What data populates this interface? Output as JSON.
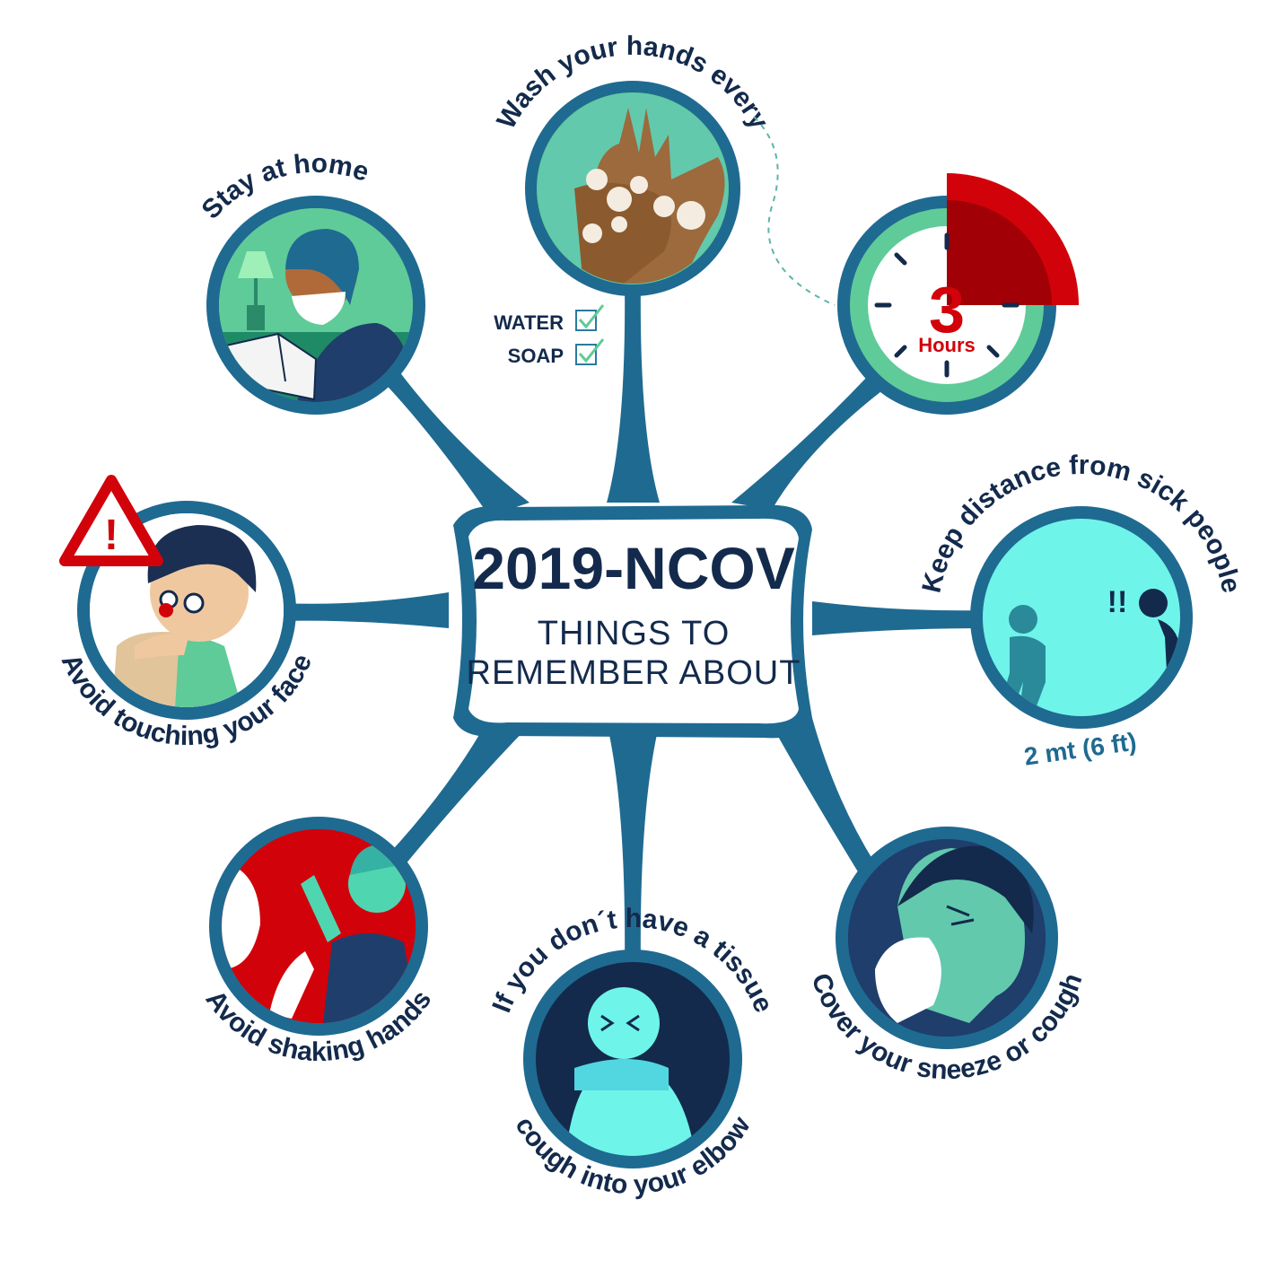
{
  "colors": {
    "navy": "#132a4c",
    "ring": "#1f6a91",
    "mint": "#5fcb98",
    "cyan": "#6ff4ea",
    "red": "#d2020a",
    "teal_text": "#1f6a91"
  },
  "center": {
    "title": "2019-NCOV",
    "subtitle_line1": "THINGS TO",
    "subtitle_line2": "REMEMBER ABOUT"
  },
  "tips": {
    "wash": {
      "label": "Wash your hands every",
      "icon": "hand-washing-icon"
    },
    "timer": {
      "number": "3",
      "unit": "Hours",
      "icon": "clock-icon"
    },
    "checklist": {
      "items": [
        "WATER",
        "SOAP"
      ]
    },
    "home": {
      "label": "Stay at home",
      "icon": "reading-person-icon"
    },
    "face": {
      "label": "Avoid touching your face",
      "icon": "touching-face-icon",
      "warning": "!"
    },
    "distance": {
      "label": "Keep distance from sick people",
      "note": "2 mt (6 ft)",
      "exclaim": "!!",
      "icon": "distance-icon"
    },
    "handshake": {
      "label": "Avoid shaking hands",
      "icon": "waving-people-icon"
    },
    "elbow": {
      "label_top": "If you don´t have a tissue",
      "label_bottom": "cough into your elbow",
      "icon": "elbow-cough-icon"
    },
    "sneeze": {
      "label": "Cover your sneeze or cough",
      "icon": "sneeze-icon"
    }
  }
}
